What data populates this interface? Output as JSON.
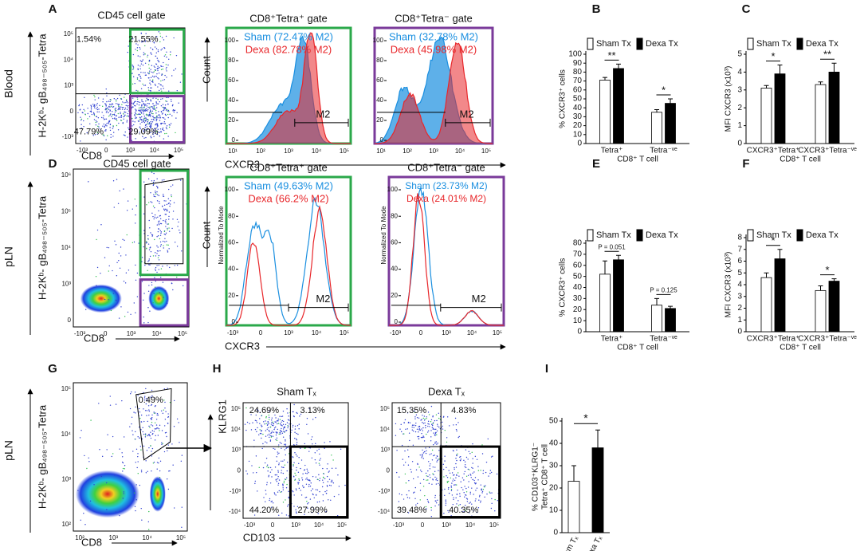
{
  "row_labels": [
    "Blood",
    "pLN",
    "pLN"
  ],
  "panel_letters": [
    "A",
    "B",
    "C",
    "D",
    "E",
    "F",
    "G",
    "H",
    "I"
  ],
  "flow_plots": [
    {
      "title": "CD45 cell gate",
      "ylabel": "H-2Kᵇ- gB₄₉₈₋₅₀₅-Tetra",
      "xlabel": "CD8",
      "quadrants": [
        "1.54%",
        "21.55%",
        "47.79%",
        "29.09%"
      ],
      "xticks": [
        "-10³",
        "0",
        "10³",
        "10⁴",
        "10⁵"
      ],
      "yticks": [
        "10⁵",
        "10⁴",
        "10³",
        "0",
        "-10³"
      ]
    },
    {
      "title": "CD45 cell gate",
      "ylabel": "H-2Kᵇ- gB₄₉₈₋₅₀₅-Tetra",
      "xlabel": "CD8",
      "xticks": [
        "-10³",
        "0",
        "10³",
        "10⁴",
        "10⁵"
      ],
      "yticks": [
        "10⁶",
        "10⁵",
        "10⁴",
        "10³",
        "0"
      ]
    },
    {
      "ylabel": "H-2Kᵇ- gB₄₉₈₋₅₀₅-Tetra",
      "xlabel": "CD8",
      "quadrants": [
        "0.49%"
      ],
      "xticks": [
        "10²",
        "10³",
        "10⁴",
        "10⁵"
      ],
      "yticks": [
        "10⁵",
        "10⁴",
        "10³",
        "10²"
      ]
    },
    {
      "title": "Sham Tₓ",
      "ylabel": "KLRG1",
      "xlabel": "CD103",
      "quadrants": [
        "24.69%",
        "3.13%",
        "44.20%",
        "27.99%"
      ],
      "xticks": [
        "-10³",
        "0",
        "10³",
        "10⁴",
        "10⁵"
      ],
      "yticks": [
        "10⁵",
        "10⁴",
        "10³",
        "0",
        "-10³",
        "-10⁴"
      ]
    },
    {
      "title": "Dexa Tₓ",
      "quadrants": [
        "15.35%",
        "4.83%",
        "39.48%",
        "40.35%"
      ],
      "xticks": [
        "-10³",
        "0",
        "10³",
        "10⁴",
        "10⁵"
      ],
      "yticks": [
        "10⁵",
        "10⁴",
        "10³",
        "0",
        "-10³",
        "-10⁴"
      ]
    }
  ],
  "histograms": [
    {
      "title": "CD8⁺Tetra⁺ gate",
      "ylabel": "Count",
      "xlabel": "CXCR3",
      "legend": [
        "Sham (72.47% M2)",
        "Dexa (82.78% M2)"
      ],
      "colors": [
        "#1a8fe0",
        "#e8262a"
      ],
      "gate": "M2",
      "ylim": [
        0,
        100
      ],
      "yticks": [
        0,
        20,
        40,
        60,
        80,
        100
      ],
      "xticks": [
        "10¹",
        "10²",
        "10³",
        "10⁴",
        "10⁵"
      ]
    },
    {
      "title": "CD8⁺Tetra⁻ gate",
      "legend": [
        "Sham (32.78% M2)",
        "Dexa (45.98% M2)"
      ],
      "colors": [
        "#1a8fe0",
        "#e8262a"
      ],
      "gate": "M2",
      "ylim": [
        0,
        100
      ],
      "yticks": [
        0,
        20,
        40,
        60,
        80,
        100
      ],
      "xticks": [
        "10¹",
        "10²",
        "10³",
        "10⁴",
        "10⁵"
      ]
    },
    {
      "title": "CD8⁺Tetra⁺ gate",
      "ylabel": "Count",
      "mode_label": "Normalized To Mode",
      "xlabel": "CXCR3",
      "legend": [
        "Sham (49.63% M2)",
        "Dexa (66.2% M2)"
      ],
      "colors": [
        "#1a8fe0",
        "#e8262a"
      ],
      "gate": "M2",
      "ylim": [
        0,
        100
      ],
      "yticks": [
        0,
        20,
        40,
        60,
        80,
        100
      ],
      "xticks": [
        "-10³",
        "0",
        "10³",
        "10⁴",
        "10⁵"
      ]
    },
    {
      "title": "CD8⁺Tetra⁻ gate",
      "mode_label": "Normalized To Mode",
      "legend": [
        "Sham (23.73% M2)",
        "Dexa (24.01% M2)"
      ],
      "colors": [
        "#1a8fe0",
        "#e8262a"
      ],
      "gate": "M2",
      "ylim": [
        0,
        100
      ],
      "yticks": [
        0,
        20,
        40,
        60,
        80,
        100
      ],
      "xticks": [
        "-10³",
        "0",
        "10³",
        "10⁴",
        "10⁵"
      ]
    }
  ],
  "chart_data": [
    {
      "type": "bar",
      "ylabel": [
        "% CXCR3⁺ cells"
      ],
      "xlabel": "CD8⁺ T cell",
      "categories": [
        "Tetra⁺",
        "Tetra⁻ᵛᵉ"
      ],
      "series": [
        {
          "name": "Sham Tx",
          "color": "#ffffff",
          "values": [
            71,
            35
          ],
          "errors": [
            3,
            3
          ]
        },
        {
          "name": "Dexa Tx",
          "color": "#000000",
          "values": [
            84,
            45
          ],
          "errors": [
            5,
            5
          ]
        }
      ],
      "significance": [
        "**",
        "*"
      ],
      "ylim": [
        0,
        100
      ],
      "yticks": [
        0,
        10,
        20,
        30,
        40,
        50,
        60,
        70,
        80,
        90,
        100
      ]
    },
    {
      "type": "bar",
      "ylabel": [
        "MFI CXCR3 (x10³)"
      ],
      "xlabel": "CD8⁺ T cell",
      "categories": [
        "CXCR3⁺Tetra⁺",
        "CXCR3⁺Tetra⁻ᵛᵉ"
      ],
      "series": [
        {
          "name": "Sham Tx",
          "color": "#ffffff",
          "values": [
            3.1,
            3.3
          ],
          "errors": [
            0.15,
            0.15
          ]
        },
        {
          "name": "Dexa Tx",
          "color": "#000000",
          "values": [
            3.9,
            4.0
          ],
          "errors": [
            0.5,
            0.5
          ]
        }
      ],
      "significance": [
        "*",
        "**"
      ],
      "ylim": [
        0,
        5
      ],
      "yticks": [
        0,
        1,
        2,
        3,
        4,
        5
      ]
    },
    {
      "type": "bar",
      "ylabel": [
        "% CXCR3⁺ cells"
      ],
      "xlabel": "CD8⁺ T cell",
      "categories": [
        "Tetra⁺",
        "Tetra⁻ᵛᵉ"
      ],
      "series": [
        {
          "name": "Sham Tx",
          "color": "#ffffff",
          "values": [
            52,
            24
          ],
          "errors": [
            12,
            6
          ]
        },
        {
          "name": "Dexa Tx",
          "color": "#000000",
          "values": [
            65,
            21
          ],
          "errors": [
            4,
            2
          ]
        }
      ],
      "significance": [
        "P = 0.051",
        "P = 0.125"
      ],
      "ylim": [
        0,
        80
      ],
      "yticks": [
        0,
        10,
        20,
        30,
        40,
        50,
        60,
        70,
        80
      ]
    },
    {
      "type": "bar",
      "ylabel": [
        "MFI CXCR3 (x10³)"
      ],
      "xlabel": "CD8⁺ T cell",
      "categories": [
        "CXCR3⁺Tetra⁺",
        "CXCR3⁺Tetra⁻ᵛᵉ"
      ],
      "series": [
        {
          "name": "Sham Tx",
          "color": "#ffffff",
          "values": [
            4.6,
            3.5
          ],
          "errors": [
            0.4,
            0.4
          ]
        },
        {
          "name": "Dexa Tx",
          "color": "#000000",
          "values": [
            6.2,
            4.3
          ],
          "errors": [
            0.8,
            0.2
          ]
        }
      ],
      "significance": [
        "*",
        "*"
      ],
      "ylim": [
        0,
        8
      ],
      "yticks": [
        0,
        1,
        2,
        3,
        4,
        5,
        6,
        7,
        8
      ]
    },
    {
      "type": "bar",
      "ylabel": [
        "% CD103⁺KLRG1⁻",
        "Tetra⁺ CD8⁺ T cell"
      ],
      "categories": [
        "Sham Tₓ",
        "Dexa Tₓ"
      ],
      "values": [
        23,
        38
      ],
      "errors": [
        7,
        8
      ],
      "colors": [
        "#ffffff",
        "#000000"
      ],
      "significance": [
        "*"
      ],
      "ylim": [
        0,
        50
      ],
      "yticks": [
        0,
        10,
        20,
        30,
        40,
        50
      ]
    }
  ]
}
